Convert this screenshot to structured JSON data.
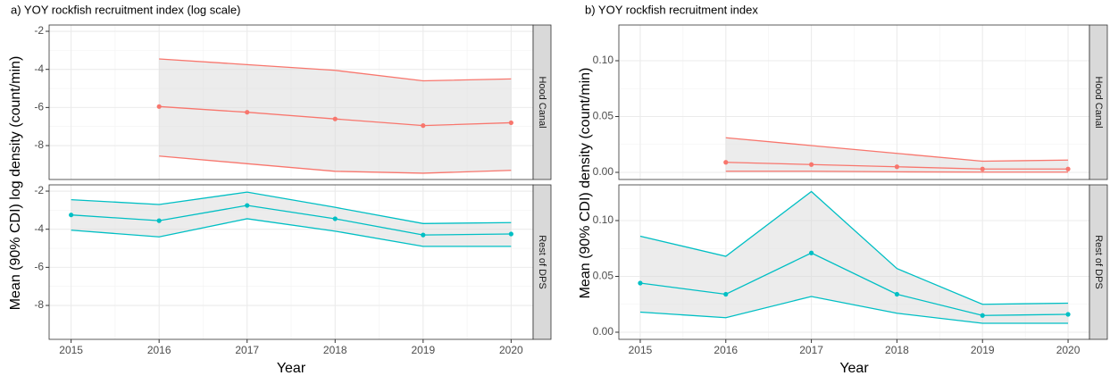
{
  "chart_data": [
    {
      "type": "line",
      "title": "a) YOY rockfish recruitment index (log scale)",
      "x_label": "Year",
      "y_label": "Mean (90% CDI) log density (count/min)",
      "x": [
        2015,
        2016,
        2017,
        2018,
        2019,
        2020
      ],
      "xlim": [
        2014.75,
        2020.25
      ],
      "xticks": [
        2015,
        2016,
        2017,
        2018,
        2019,
        2020
      ],
      "ylim": [
        -9.78,
        -1.67
      ],
      "yticks": [
        -2,
        -4,
        -6,
        -8
      ],
      "grid": true,
      "facets": [
        {
          "label": "Hood Canal",
          "color": "#f8766d",
          "values": [
            null,
            -5.95,
            -6.25,
            -6.6,
            -6.95,
            -6.8
          ],
          "upper": [
            null,
            -3.45,
            -3.75,
            -4.05,
            -4.6,
            -4.5
          ],
          "lower": [
            null,
            -8.55,
            -8.95,
            -9.35,
            -9.45,
            -9.3
          ]
        },
        {
          "label": "Rest of DPS",
          "color": "#00bfc4",
          "values": [
            -3.25,
            -3.55,
            -2.75,
            -3.45,
            -4.3,
            -4.25
          ],
          "upper": [
            -2.45,
            -2.7,
            -2.05,
            -2.85,
            -3.7,
            -3.65
          ],
          "lower": [
            -4.05,
            -4.4,
            -3.45,
            -4.1,
            -4.9,
            -4.9
          ]
        }
      ]
    },
    {
      "type": "line",
      "title": "b) YOY rockfish recruitment index",
      "x_label": "Year",
      "y_label": "Mean (90% CDI) density (count/min)",
      "x": [
        2015,
        2016,
        2017,
        2018,
        2019,
        2020
      ],
      "xlim": [
        2014.75,
        2020.25
      ],
      "xticks": [
        2015,
        2016,
        2017,
        2018,
        2019,
        2020
      ],
      "ylim": [
        -0.0064,
        0.132
      ],
      "yticks": [
        {
          "value": 0,
          "label": "0.00"
        },
        {
          "value": 0.05,
          "label": "0.05"
        },
        {
          "value": 0.1,
          "label": "0.10"
        }
      ],
      "grid": true,
      "facets": [
        {
          "label": "Hood Canal",
          "color": "#f8766d",
          "values": [
            null,
            0.009,
            0.007,
            0.005,
            0.003,
            0.003
          ],
          "upper": [
            null,
            0.031,
            0.024,
            0.017,
            0.01,
            0.011
          ],
          "lower": [
            null,
            0.001,
            0.001,
            0.0005,
            0.0002,
            0.0002
          ]
        },
        {
          "label": "Rest of DPS",
          "color": "#00bfc4",
          "values": [
            0.044,
            0.034,
            0.071,
            0.034,
            0.015,
            0.016
          ],
          "upper": [
            0.086,
            0.068,
            0.126,
            0.057,
            0.025,
            0.026
          ],
          "lower": [
            0.018,
            0.013,
            0.032,
            0.017,
            0.008,
            0.008
          ]
        }
      ]
    }
  ]
}
